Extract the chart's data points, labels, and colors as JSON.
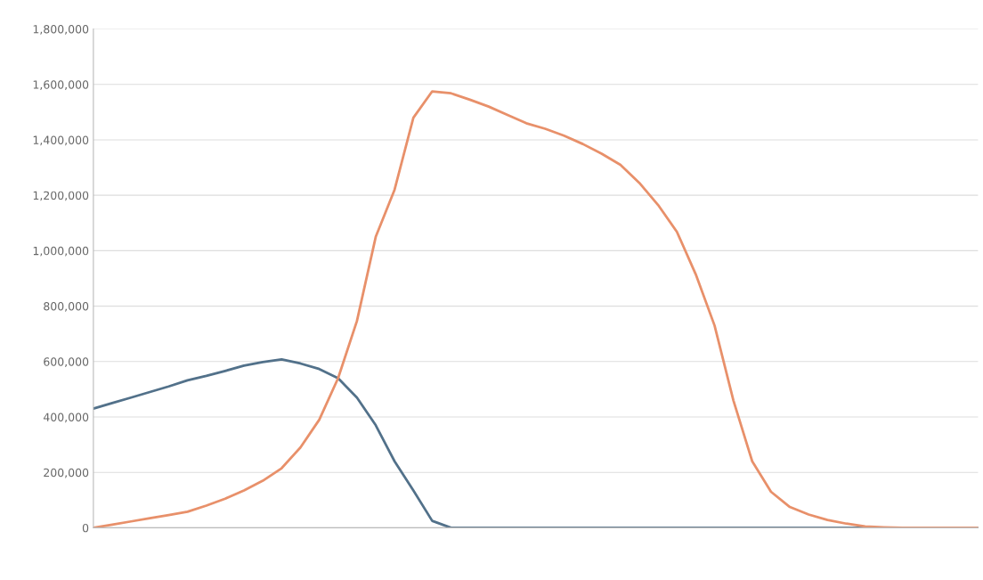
{
  "chart_data": {
    "type": "line",
    "categories": [
      null,
      null,
      null,
      null,
      null,
      null,
      null,
      null,
      null,
      null,
      null,
      null,
      null,
      null,
      null,
      null,
      null,
      null,
      null,
      null,
      null,
      null,
      null,
      null,
      null,
      null,
      null,
      null,
      null,
      null,
      null,
      null,
      null,
      null,
      null,
      null,
      null,
      null,
      null,
      null,
      null,
      null,
      null,
      null,
      null,
      null,
      null,
      null
    ],
    "series": [
      {
        "color": "#52718a",
        "values": [
          430000,
          450000,
          470000,
          490000,
          510000,
          532000,
          548000,
          566000,
          585000,
          598000,
          608000,
          593000,
          573000,
          540000,
          470000,
          370000,
          240000,
          135000,
          25000,
          0,
          0,
          0,
          0,
          0,
          0,
          0,
          0,
          0,
          0,
          0,
          0,
          0,
          0,
          0,
          0,
          0,
          0,
          0,
          0,
          0,
          0,
          0,
          0,
          0,
          0,
          0,
          0,
          0
        ]
      },
      {
        "color": "#e8906a",
        "values": [
          0,
          11000,
          23000,
          35000,
          46000,
          58000,
          80000,
          105000,
          135000,
          170000,
          215000,
          290000,
          390000,
          540000,
          746000,
          1050000,
          1220000,
          1480000,
          1575000,
          1568000,
          1545000,
          1520000,
          1490000,
          1460000,
          1440000,
          1415000,
          1385000,
          1350000,
          1310000,
          1245000,
          1165000,
          1068000,
          915000,
          730000,
          460000,
          240000,
          130000,
          75000,
          48000,
          28000,
          15000,
          5000,
          2000,
          0,
          0,
          0,
          0,
          0
        ]
      }
    ],
    "ylim": [
      0,
      1800000
    ],
    "yticks": [
      0,
      {
        "value": 200000,
        "label": "200,000"
      },
      {
        "value": 400000,
        "label": "400,000"
      },
      {
        "value": 600000,
        "label": "600,000"
      },
      {
        "value": 800000,
        "label": "800,000"
      },
      {
        "value": 1000000,
        "label": "1,000,000"
      },
      {
        "value": 1200000,
        "label": "1,200,000"
      },
      {
        "value": 1400000,
        "label": "1,400,000"
      },
      {
        "value": 1600000,
        "label": "1,600,000"
      },
      {
        "value": 1800000,
        "label": "1,800,000"
      }
    ],
    "grid": "y",
    "line_style": "solid",
    "marker": "none"
  }
}
